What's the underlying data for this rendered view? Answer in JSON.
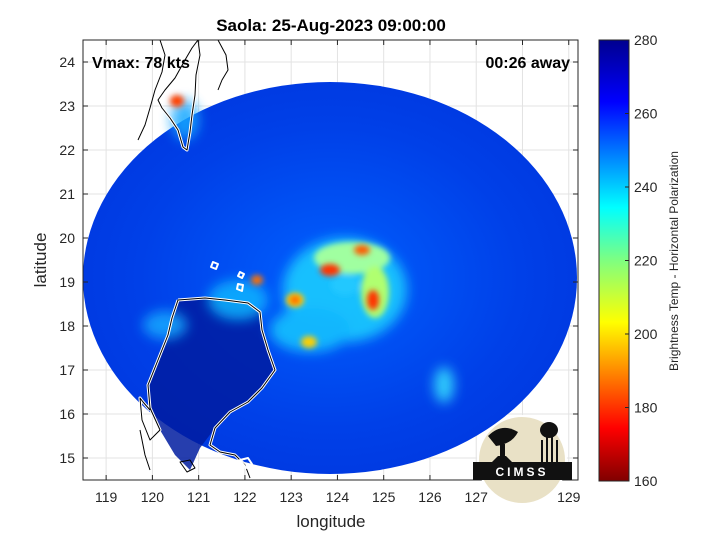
{
  "chart_data": {
    "type": "heatmap",
    "title": "Saola: 25-Aug-2023 09:00:00",
    "xlabel": "longitude",
    "ylabel": "latitude",
    "xlim": [
      118.5,
      129.2
    ],
    "ylim": [
      14.5,
      24.5
    ],
    "xticks": [
      119,
      120,
      121,
      122,
      123,
      124,
      125,
      126,
      127,
      128,
      129
    ],
    "yticks": [
      15,
      16,
      17,
      18,
      19,
      20,
      21,
      22,
      23,
      24
    ],
    "grid": true,
    "annotations": {
      "vmax": "Vmax: 78 kts",
      "away": "00:26 away"
    },
    "colorbar": {
      "label": "Brightness Temp - Horizontal Polarization",
      "range": [
        160,
        280
      ],
      "ticks": [
        160,
        180,
        200,
        220,
        240,
        260,
        280
      ],
      "colormap": "jet"
    },
    "swath": {
      "center_lon": 124.2,
      "center_lat": 18.9,
      "radius_lon": 3.55,
      "radius_lat": 5.0
    },
    "features": [
      {
        "name": "eyewall-north",
        "lon": 123.9,
        "lat": 19.4,
        "tb": 200
      },
      {
        "name": "eyewall-east",
        "lon": 124.85,
        "lat": 18.6,
        "tb": 190
      },
      {
        "name": "rainband-west",
        "lon": 123.0,
        "lat": 18.5,
        "tb": 205
      },
      {
        "name": "rainband-south",
        "lon": 123.4,
        "lat": 17.6,
        "tb": 210
      },
      {
        "name": "luzon-convection",
        "lon": 122.2,
        "lat": 18.9,
        "tb": 205
      },
      {
        "name": "taiwan-hotspot",
        "lon": 120.55,
        "lat": 23.05,
        "tb": 185
      },
      {
        "name": "cell-east",
        "lon": 126.4,
        "lat": 16.7,
        "tb": 235
      }
    ],
    "logo": "CIMSS"
  }
}
